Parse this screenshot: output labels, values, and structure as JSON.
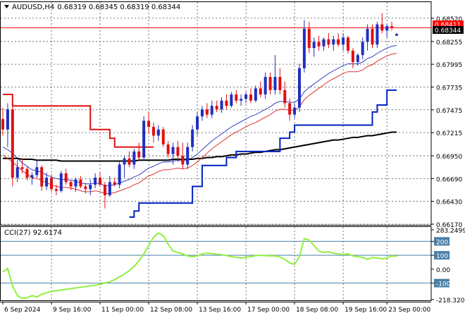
{
  "header": {
    "symbol": "AUDUSD,H4",
    "ohlc": "0.68319 0.68345 0.68319 0.68344",
    "menu_icon": "triangle-down-icon"
  },
  "price_labels": {
    "bid_box": "0.68411",
    "last_box": "0.68344"
  },
  "indicator_header": "CCI(27) 92.6174",
  "colors": {
    "bull": "#1f2fbf",
    "bear": "#e01010",
    "grid": "#505050",
    "sma_black": "#000000",
    "envelope_red": "#e03030",
    "stop_blue": "#0020c0",
    "trend_red": "#e01010",
    "cci_line": "#90f040",
    "cci_levels": "#4a7fa8",
    "bid_line": "#ff0000"
  },
  "chart_data": [
    {
      "type": "candlestick",
      "title": "AUDUSD,H4",
      "ylim": [
        0.6617,
        0.6868
      ],
      "y_ticks": [
        "0.68520",
        "0.68255",
        "0.67995",
        "0.67735",
        "0.67475",
        "0.67215",
        "0.66950",
        "0.66690",
        "0.66430",
        "0.66170"
      ],
      "x_labels": [
        "6 Sep 2024",
        "9 Sep 16:00",
        "11 Sep 00:00",
        "12 Sep 08:00",
        "13 Sep 16:00",
        "17 Sep 00:00",
        "18 Sep 08:00",
        "19 Sep 16:00",
        "23 Sep 00:00"
      ],
      "bid": 0.68411,
      "last": 0.68344,
      "candles": [
        [
          0.6737,
          0.675,
          0.6718,
          0.6725
        ],
        [
          0.6725,
          0.6755,
          0.6705,
          0.6748
        ],
        [
          0.6748,
          0.6752,
          0.666,
          0.667
        ],
        [
          0.667,
          0.669,
          0.6665,
          0.6682
        ],
        [
          0.6682,
          0.6692,
          0.6675,
          0.668
        ],
        [
          0.668,
          0.6683,
          0.6667,
          0.667
        ],
        [
          0.667,
          0.6676,
          0.6662,
          0.6673
        ],
        [
          0.6673,
          0.669,
          0.667,
          0.6682
        ],
        [
          0.6682,
          0.6684,
          0.6655,
          0.666
        ],
        [
          0.666,
          0.6676,
          0.6656,
          0.667
        ],
        [
          0.667,
          0.6674,
          0.6654,
          0.6657
        ],
        [
          0.6657,
          0.6662,
          0.665,
          0.6655
        ],
        [
          0.6655,
          0.6678,
          0.6653,
          0.6675
        ],
        [
          0.6675,
          0.668,
          0.6662,
          0.6665
        ],
        [
          0.6665,
          0.6667,
          0.6656,
          0.666
        ],
        [
          0.666,
          0.667,
          0.6654,
          0.6668
        ],
        [
          0.6668,
          0.6672,
          0.6658,
          0.666
        ],
        [
          0.666,
          0.6664,
          0.6652,
          0.6657
        ],
        [
          0.6657,
          0.6668,
          0.665,
          0.6662
        ],
        [
          0.6662,
          0.6675,
          0.6658,
          0.667
        ],
        [
          0.667,
          0.6676,
          0.666,
          0.6662
        ],
        [
          0.6662,
          0.6665,
          0.6635,
          0.665
        ],
        [
          0.665,
          0.6672,
          0.6648,
          0.6665
        ],
        [
          0.6665,
          0.667,
          0.666,
          0.6662
        ],
        [
          0.6662,
          0.669,
          0.6658,
          0.6685
        ],
        [
          0.6685,
          0.6695,
          0.667,
          0.6692
        ],
        [
          0.6692,
          0.67,
          0.6682,
          0.6685
        ],
        [
          0.6685,
          0.6703,
          0.668,
          0.67
        ],
        [
          0.67,
          0.671,
          0.669,
          0.6693
        ],
        [
          0.6693,
          0.674,
          0.669,
          0.6735
        ],
        [
          0.6735,
          0.6745,
          0.672,
          0.6728
        ],
        [
          0.6728,
          0.6733,
          0.671,
          0.6718
        ],
        [
          0.6718,
          0.673,
          0.6712,
          0.6725
        ],
        [
          0.6725,
          0.6728,
          0.6705,
          0.6708
        ],
        [
          0.6708,
          0.6712,
          0.6693,
          0.6697
        ],
        [
          0.6697,
          0.671,
          0.6685,
          0.6705
        ],
        [
          0.6705,
          0.6712,
          0.6688,
          0.6695
        ],
        [
          0.6695,
          0.671,
          0.668,
          0.6685
        ],
        [
          0.6685,
          0.671,
          0.668,
          0.6705
        ],
        [
          0.6705,
          0.673,
          0.67,
          0.6725
        ],
        [
          0.6725,
          0.6745,
          0.6718,
          0.674
        ],
        [
          0.674,
          0.6752,
          0.6735,
          0.6748
        ],
        [
          0.6748,
          0.6755,
          0.6738,
          0.6742
        ],
        [
          0.6742,
          0.6758,
          0.6738,
          0.6752
        ],
        [
          0.6752,
          0.6758,
          0.6745,
          0.6748
        ],
        [
          0.6748,
          0.6762,
          0.6744,
          0.6758
        ],
        [
          0.6758,
          0.6765,
          0.6748,
          0.6752
        ],
        [
          0.6752,
          0.6768,
          0.675,
          0.6765
        ],
        [
          0.6765,
          0.677,
          0.6755,
          0.6758
        ],
        [
          0.6758,
          0.6765,
          0.6752,
          0.676
        ],
        [
          0.676,
          0.6768,
          0.6755,
          0.6765
        ],
        [
          0.6765,
          0.6772,
          0.6755,
          0.6758
        ],
        [
          0.6758,
          0.6775,
          0.6756,
          0.6772
        ],
        [
          0.6772,
          0.678,
          0.6762,
          0.6765
        ],
        [
          0.6765,
          0.679,
          0.676,
          0.6785
        ],
        [
          0.6785,
          0.679,
          0.6765,
          0.677
        ],
        [
          0.677,
          0.681,
          0.6765,
          0.6785
        ],
        [
          0.6785,
          0.6795,
          0.6765,
          0.677
        ],
        [
          0.677,
          0.678,
          0.675,
          0.6755
        ],
        [
          0.6755,
          0.676,
          0.6735,
          0.6742
        ],
        [
          0.6742,
          0.6755,
          0.6738,
          0.675
        ],
        [
          0.675,
          0.68,
          0.6745,
          0.6795
        ],
        [
          0.6795,
          0.685,
          0.679,
          0.684
        ],
        [
          0.684,
          0.6848,
          0.6812,
          0.6818
        ],
        [
          0.6818,
          0.683,
          0.6808,
          0.6825
        ],
        [
          0.6825,
          0.6832,
          0.6815,
          0.682
        ],
        [
          0.682,
          0.683,
          0.6815,
          0.6828
        ],
        [
          0.6828,
          0.6835,
          0.6818,
          0.6822
        ],
        [
          0.6822,
          0.6832,
          0.6815,
          0.6828
        ],
        [
          0.6828,
          0.6835,
          0.682,
          0.6822
        ],
        [
          0.6822,
          0.6835,
          0.6815,
          0.683
        ],
        [
          0.683,
          0.6832,
          0.6812,
          0.6815
        ],
        [
          0.6815,
          0.6818,
          0.6795,
          0.6802
        ],
        [
          0.6802,
          0.6812,
          0.6798,
          0.681
        ],
        [
          0.681,
          0.683,
          0.6805,
          0.6825
        ],
        [
          0.6825,
          0.6845,
          0.6815,
          0.684
        ],
        [
          0.684,
          0.6845,
          0.6818,
          0.6822
        ],
        [
          0.6822,
          0.6848,
          0.6818,
          0.6845
        ],
        [
          0.6845,
          0.6858,
          0.6835,
          0.6838
        ],
        [
          0.6838,
          0.6845,
          0.683,
          0.6843
        ],
        [
          0.6843,
          0.6848,
          0.6838,
          0.6841
        ],
        [
          0.6832,
          0.6835,
          0.6832,
          0.6834
        ]
      ],
      "series": [
        {
          "values": [
            0.6705,
            0.6702,
            0.6698,
            0.6692,
            0.6687,
            0.6683,
            0.6679,
            0.6678,
            0.6676,
            0.6673,
            0.6671,
            0.6669,
            0.6668,
            0.6668,
            0.6667,
            0.6666,
            0.6664,
            0.6663,
            0.6663,
            0.6664,
            0.6663,
            0.6661,
            0.6661,
            0.6662,
            0.6664,
            0.6666,
            0.6668,
            0.6671,
            0.6673,
            0.6677,
            0.6681,
            0.6683,
            0.6686,
            0.6688,
            0.6688,
            0.6689,
            0.669,
            0.6689,
            0.669,
            0.6693,
            0.6697,
            0.6702,
            0.6707,
            0.6712,
            0.6716,
            0.672,
            0.6724,
            0.6728,
            0.6731,
            0.6734,
            0.6737,
            0.674,
            0.6742,
            0.6745,
            0.6748,
            0.6751,
            0.6755,
            0.6757,
            0.6757,
            0.6756,
            0.6756,
            0.676,
            0.6768,
            0.6773,
            0.6777,
            0.6781,
            0.6785,
            0.6789,
            0.6792,
            0.6795,
            0.6798,
            0.68,
            0.68,
            0.68,
            0.6802,
            0.6806,
            0.6808,
            0.6812,
            0.6815,
            0.6818,
            0.682,
            0.6821
          ]
        },
        {
          "values": [
            0.6692,
            0.6692,
            0.6692,
            0.6692,
            0.6691,
            0.6691,
            0.6691,
            0.669,
            0.669,
            0.669,
            0.669,
            0.669,
            0.6689,
            0.6689,
            0.6689,
            0.6689,
            0.6689,
            0.6689,
            0.6689,
            0.6689,
            0.6689,
            0.6689,
            0.6689,
            0.6689,
            0.6689,
            0.6689,
            0.6689,
            0.6689,
            0.669,
            0.669,
            0.669,
            0.669,
            0.669,
            0.669,
            0.669,
            0.6691,
            0.6691,
            0.6691,
            0.6691,
            0.6691,
            0.6692,
            0.6692,
            0.6693,
            0.6693,
            0.6694,
            0.6694,
            0.6695,
            0.6696,
            0.6696,
            0.6697,
            0.6697,
            0.6698,
            0.6699,
            0.6699,
            0.67,
            0.6701,
            0.6702,
            0.6702,
            0.6703,
            0.6704,
            0.6705,
            0.6706,
            0.6707,
            0.6708,
            0.6709,
            0.671,
            0.6711,
            0.6712,
            0.6713,
            0.6713,
            0.6714,
            0.6715,
            0.6716,
            0.6716,
            0.6717,
            0.6718,
            0.6718,
            0.6719,
            0.672,
            0.6721,
            0.6722,
            0.6722
          ]
        },
        {
          "values": [
            0.6696,
            0.6692,
            0.6688,
            0.6683,
            0.6678,
            0.6674,
            0.667,
            0.6669,
            0.6667,
            0.6664,
            0.6662,
            0.666,
            0.6659,
            0.6659,
            0.6658,
            0.6657,
            0.6655,
            0.6654,
            0.6654,
            0.6655,
            0.6654,
            0.6652,
            0.6652,
            0.6653,
            0.6655,
            0.6657,
            0.6659,
            0.6662,
            0.6664,
            0.6668,
            0.6672,
            0.6674,
            0.6677,
            0.6679,
            0.6679,
            0.668,
            0.6681,
            0.668,
            0.6681,
            0.6684,
            0.6688,
            0.6693,
            0.6698,
            0.6703,
            0.6707,
            0.6711,
            0.6715,
            0.6719,
            0.6722,
            0.6725,
            0.6728,
            0.6731,
            0.6733,
            0.6736,
            0.6739,
            0.6742,
            0.6746,
            0.6748,
            0.6748,
            0.6747,
            0.6747,
            0.6751,
            0.6759,
            0.6764,
            0.6768,
            0.6772,
            0.6776,
            0.678,
            0.6783,
            0.6786,
            0.6789,
            0.6791,
            0.6791,
            0.6791,
            0.6793,
            0.6797,
            0.6799,
            0.6803,
            0.6806,
            0.6809,
            0.6811,
            0.6812
          ]
        },
        {
          "values": [
            null,
            null,
            null,
            null,
            null,
            null,
            null,
            null,
            null,
            null,
            null,
            null,
            null,
            null,
            null,
            null,
            null,
            null,
            null,
            null,
            null,
            null,
            null,
            null,
            null,
            null,
            0.6625,
            0.6632,
            0.6641,
            0.6641,
            0.6641,
            0.6641,
            0.6641,
            0.6641,
            0.6641,
            0.6641,
            0.6641,
            0.6641,
            0.6641,
            0.666,
            0.666,
            0.6684,
            0.6684,
            0.6684,
            0.6684,
            0.6684,
            0.6693,
            0.6693,
            0.67,
            0.67,
            0.67,
            0.67,
            0.67,
            0.67,
            0.67,
            0.67,
            0.67,
            0.6715,
            0.6715,
            0.6722,
            0.673,
            0.673,
            0.673,
            0.673,
            0.673,
            0.673,
            0.673,
            0.673,
            0.673,
            0.673,
            0.673,
            0.673,
            0.673,
            0.673,
            0.673,
            0.673,
            0.6745,
            0.6753,
            0.6753,
            0.677,
            0.677,
            0.677
          ]
        },
        {
          "values": [
            0.6765,
            0.6765,
            0.6752,
            0.6752,
            0.6752,
            0.6752,
            0.6752,
            0.6752,
            0.6752,
            0.6752,
            0.6752,
            0.6752,
            0.6752,
            0.6752,
            0.6752,
            0.6752,
            0.6752,
            0.6752,
            0.6725,
            0.6725,
            0.6725,
            0.6725,
            0.6715,
            0.6705,
            0.6705,
            0.6705,
            0.6705,
            0.6705,
            0.6705,
            0.6705,
            0.6705,
            0.6705,
            null,
            null,
            null,
            null,
            null,
            null,
            null,
            null,
            null,
            null,
            null,
            null,
            null,
            null,
            null,
            null,
            null,
            null,
            null,
            null,
            null,
            null,
            null,
            null,
            null,
            null,
            null,
            null,
            null,
            null,
            null,
            null,
            null,
            null,
            null,
            null,
            null,
            null,
            null,
            null,
            null,
            null,
            null,
            null,
            null,
            null,
            null,
            null,
            null,
            null
          ]
        }
      ]
    },
    {
      "type": "line",
      "title": "CCI(27) 92.6174",
      "ylim": [
        -218.3203,
        283.2499
      ],
      "y_ticks": [
        "283.2499",
        "200",
        "100",
        "0.00",
        "-100",
        "-218.3203"
      ],
      "levels": [
        200,
        100,
        -100
      ],
      "series": [
        {
          "values": [
            -20,
            5,
            -120,
            -190,
            -210,
            -205,
            -190,
            -200,
            -180,
            -170,
            -160,
            -155,
            -150,
            -145,
            -140,
            -135,
            -130,
            -125,
            -120,
            -115,
            -110,
            -100,
            -90,
            -75,
            -55,
            -35,
            -10,
            20,
            60,
            110,
            170,
            230,
            260,
            240,
            180,
            130,
            120,
            110,
            95,
            90,
            95,
            110,
            115,
            112,
            108,
            105,
            98,
            90,
            85,
            80,
            85,
            90,
            98,
            100,
            97,
            96,
            95,
            88,
            70,
            45,
            35,
            90,
            220,
            210,
            170,
            130,
            120,
            125,
            115,
            110,
            105,
            110,
            95,
            90,
            85,
            70,
            85,
            80,
            75,
            80,
            95,
            92.6174
          ]
        }
      ]
    }
  ]
}
